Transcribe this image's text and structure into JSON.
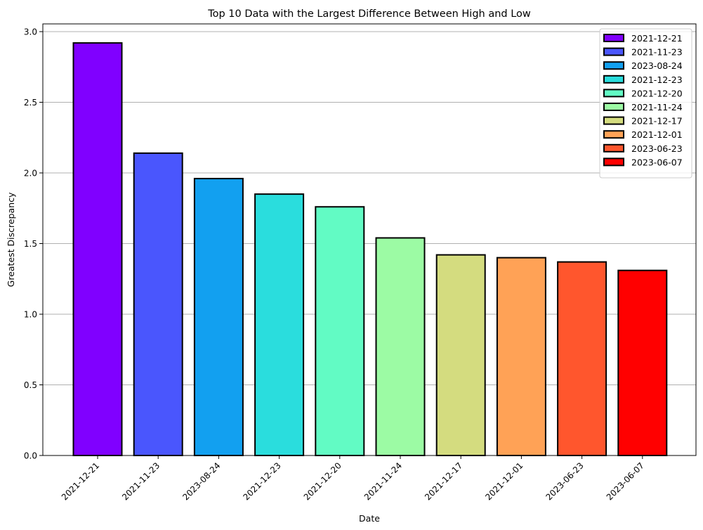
{
  "chart_data": {
    "type": "bar",
    "title": "Top 10 Data with the Largest Difference Between High and Low",
    "xlabel": "Date",
    "ylabel": "Greatest Discrepancy",
    "categories": [
      "2021-12-21",
      "2021-11-23",
      "2023-08-24",
      "2021-12-23",
      "2021-12-20",
      "2021-11-24",
      "2021-12-17",
      "2021-12-01",
      "2023-06-23",
      "2023-06-07"
    ],
    "values": [
      2.92,
      2.14,
      1.96,
      1.85,
      1.76,
      1.54,
      1.42,
      1.4,
      1.37,
      1.31
    ],
    "colors": [
      "#8000ff",
      "#4a56fd",
      "#12a0f0",
      "#2adddd",
      "#62fbc4",
      "#9cfba4",
      "#d4dc7f",
      "#ffa256",
      "#ff562d",
      "#ff0000"
    ],
    "ylim": [
      0,
      3.0
    ],
    "yticks": [
      "0.0",
      "0.5",
      "1.0",
      "1.5",
      "2.0",
      "2.5",
      "3.0"
    ],
    "grid": "horizontal",
    "legend": {
      "placement": "top-right",
      "entries": [
        "2021-12-21",
        "2021-11-23",
        "2023-08-24",
        "2021-12-23",
        "2021-12-20",
        "2021-11-24",
        "2021-12-17",
        "2021-12-01",
        "2023-06-23",
        "2023-06-07"
      ]
    }
  }
}
